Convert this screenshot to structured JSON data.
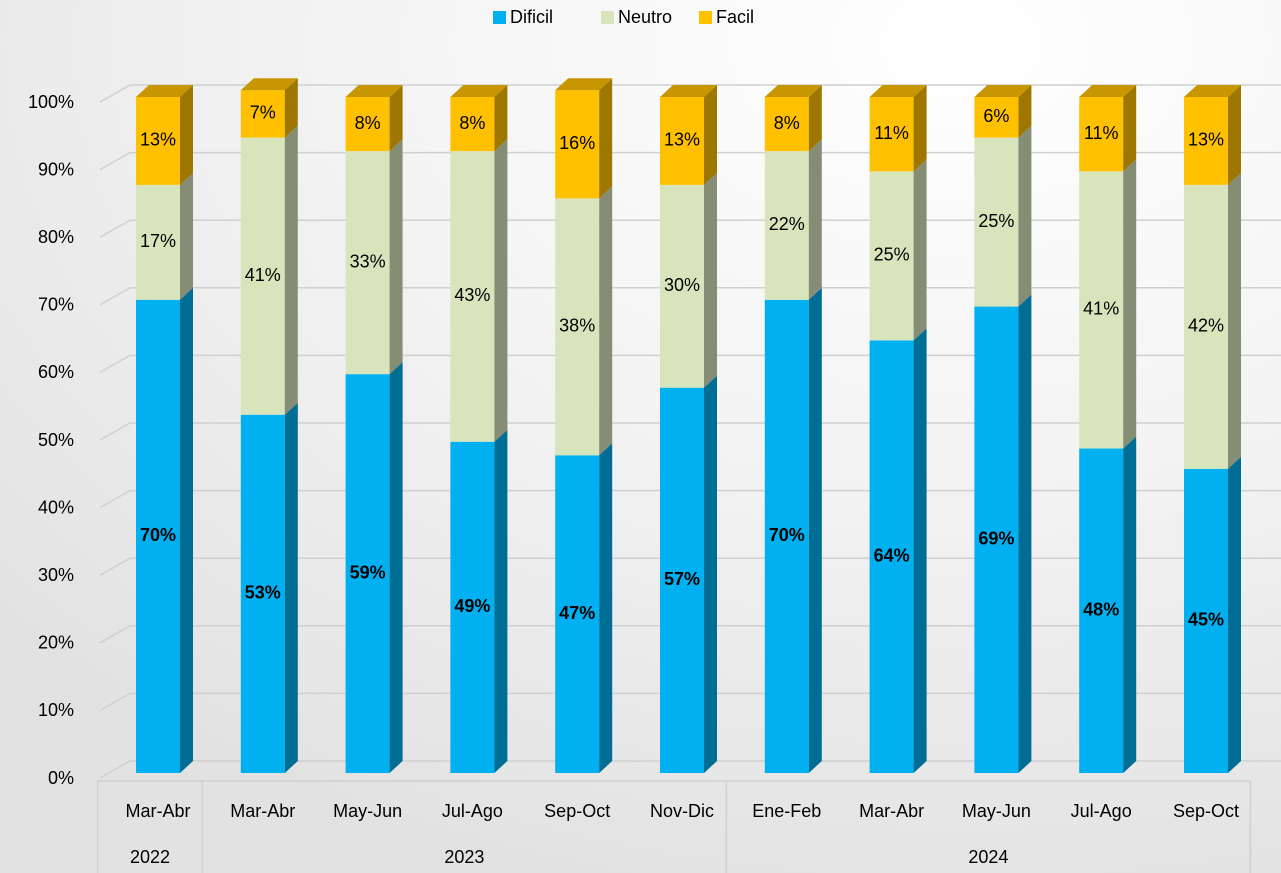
{
  "chart_data": {
    "type": "stacked-bar-3d",
    "categories": [
      "Mar-Abr",
      "Mar-Abr",
      "May-Jun",
      "Jul-Ago",
      "Sep-Oct",
      "Nov-Dic",
      "Ene-Feb",
      "Mar-Abr",
      "May-Jun",
      "Jul-Ago",
      "Sep-Oct"
    ],
    "years": [
      "2022",
      "2023",
      null,
      null,
      null,
      null,
      "2024",
      null,
      null,
      null,
      null
    ],
    "series": [
      {
        "name": "Dificil",
        "color": "#00b0f0",
        "values": [
          70,
          53,
          59,
          49,
          47,
          57,
          70,
          64,
          69,
          48,
          45
        ],
        "value_labels": [
          "70%",
          "53%",
          "59%",
          "49%",
          "47%",
          "57%",
          "70%",
          "64%",
          "69%",
          "48%",
          "45%"
        ]
      },
      {
        "name": "Neutro",
        "color": "#d8e4bc",
        "values": [
          17,
          41,
          33,
          43,
          38,
          30,
          22,
          25,
          25,
          41,
          42
        ],
        "value_labels": [
          "17%",
          "41%",
          "33%",
          "43%",
          "38%",
          "30%",
          "22%",
          "25%",
          "25%",
          "41%",
          "42%"
        ]
      },
      {
        "name": "Facil",
        "color": "#ffc000",
        "values": [
          13,
          7,
          8,
          8,
          16,
          13,
          8,
          11,
          6,
          11,
          13
        ],
        "value_labels": [
          "13%",
          "7%",
          "8%",
          "8%",
          "16%",
          "13%",
          "8%",
          "11%",
          "6%",
          "11%",
          "13%"
        ]
      }
    ],
    "ylim": [
      0,
      100
    ],
    "yticks": [
      {
        "value": 0,
        "label": "0%"
      },
      {
        "value": 10,
        "label": "10%"
      },
      {
        "value": 20,
        "label": "20%"
      },
      {
        "value": 30,
        "label": "30%"
      },
      {
        "value": 40,
        "label": "40%"
      },
      {
        "value": 50,
        "label": "50%"
      },
      {
        "value": 60,
        "label": "60%"
      },
      {
        "value": 70,
        "label": "70%"
      },
      {
        "value": 80,
        "label": "80%"
      },
      {
        "value": 90,
        "label": "90%"
      },
      {
        "value": 100,
        "label": "100%"
      }
    ],
    "grid": true,
    "legend": "top"
  }
}
